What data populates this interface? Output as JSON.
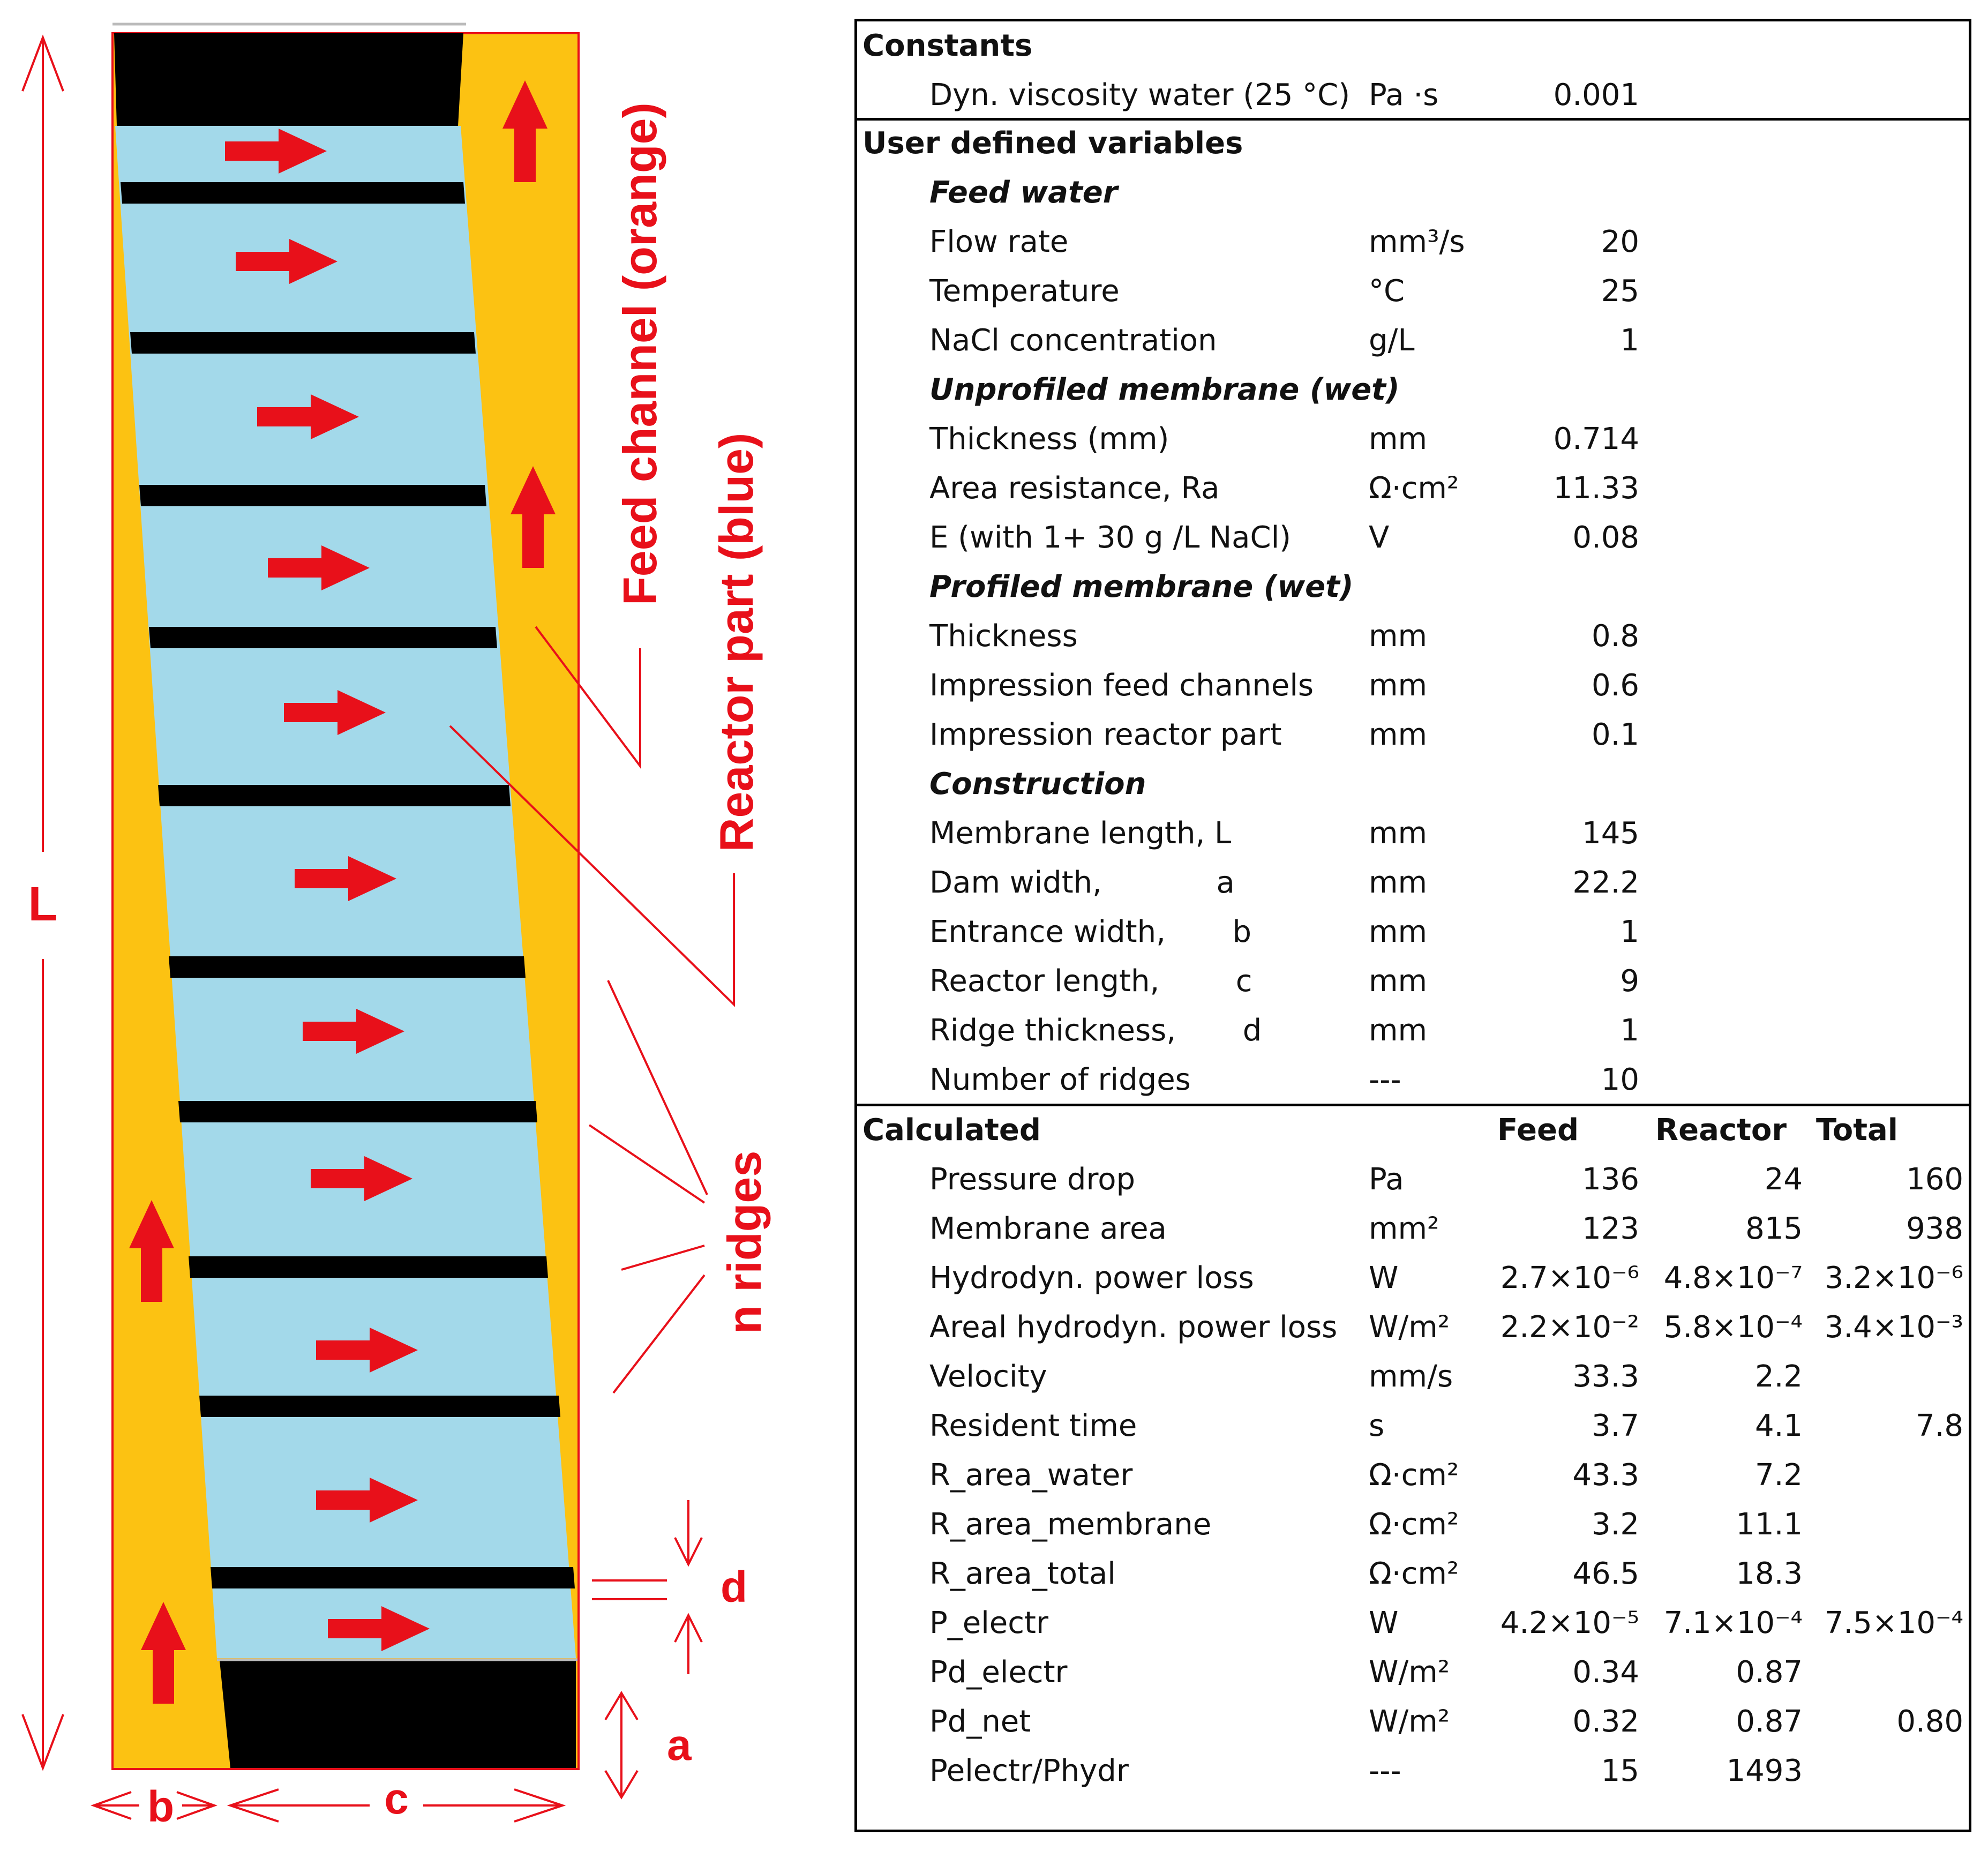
{
  "diagram": {
    "labels": {
      "feed_channel": "Feed channel  (orange)",
      "reactor_part": "Reactor part (blue)",
      "n_ridges": "n ridges",
      "L": "L",
      "a": "a",
      "b": "b",
      "c": "c",
      "d": "d"
    },
    "colors": {
      "feed_channel": "#fcc212",
      "reactor_part": "#a3d9ea",
      "ridge": "#000000",
      "arrow": "#e8101a",
      "annotation": "#e8101a"
    },
    "ridge_count": 10,
    "flow_arrow_icon": "right-arrow-icon",
    "inflow_arrow_icon": "up-arrow-icon"
  },
  "table": {
    "constants": {
      "header": "Constants",
      "rows": [
        {
          "name": "Dyn. viscosity water (25 °C)",
          "unit": "Pa ·s",
          "value": "0.001"
        }
      ]
    },
    "user_defined": {
      "header": "User defined variables",
      "groups": [
        {
          "title": "Feed water",
          "rows": [
            {
              "name": "Flow rate",
              "unit": "mm³/s",
              "value": "20"
            },
            {
              "name": "Temperature",
              "unit": "°C",
              "value": "25"
            },
            {
              "name": "NaCl concentration",
              "unit": "g/L",
              "value": "1"
            }
          ]
        },
        {
          "title": "Unprofiled membrane (wet)",
          "rows": [
            {
              "name": "Thickness (mm)",
              "unit": "mm",
              "value": "0.714"
            },
            {
              "name": "Area resistance, Ra",
              "unit": "Ω·cm²",
              "value": "11.33"
            },
            {
              "name": "E (with 1+ 30 g /L NaCl)",
              "unit": "V",
              "value": "0.08"
            }
          ]
        },
        {
          "title": "Profiled membrane (wet)",
          "rows": [
            {
              "name": "Thickness",
              "unit": "mm",
              "value": "0.8"
            },
            {
              "name": "Impression  feed  channels",
              "unit": "mm",
              "value": "0.6"
            },
            {
              "name": "Impression reactor part",
              "unit": "mm",
              "value": "0.1"
            }
          ]
        },
        {
          "title": "Construction",
          "rows": [
            {
              "name": "Membrane length,  L",
              "unit": "mm",
              "value": "145"
            },
            {
              "name": "Dam width,            a",
              "unit": "mm",
              "value": "22.2"
            },
            {
              "name": "Entrance width,       b",
              "unit": "mm",
              "value": "1"
            },
            {
              "name": "Reactor length,        c",
              "unit": "mm",
              "value": "9"
            },
            {
              "name": "Ridge thickness,       d",
              "unit": "mm",
              "value": "1"
            },
            {
              "name": "Number of ridges",
              "unit": "---",
              "value": "10"
            }
          ]
        }
      ]
    },
    "calculated": {
      "header": "Calculated",
      "columns": [
        "Feed",
        "Reactor",
        "Total"
      ],
      "rows": [
        {
          "name": "Pressure drop",
          "unit": "Pa",
          "feed": "136",
          "reactor": "24",
          "total": "160"
        },
        {
          "name": "Membrane area",
          "unit": "mm²",
          "feed": "123",
          "reactor": "815",
          "total": "938"
        },
        {
          "name": "Hydrodyn. power loss",
          "unit": "W",
          "feed": "2.7×10⁻⁶",
          "reactor": "4.8×10⁻⁷",
          "total": "3.2×10⁻⁶"
        },
        {
          "name": "Areal hydrodyn. power loss",
          "unit": "W/m²",
          "feed": "2.2×10⁻²",
          "reactor": "5.8×10⁻⁴",
          "total": "3.4×10⁻³"
        },
        {
          "name": "Velocity",
          "unit": "mm/s",
          "feed": "33.3",
          "reactor": "2.2",
          "total": ""
        },
        {
          "name": "Resident time",
          "unit": "s",
          "feed": "3.7",
          "reactor": "4.1",
          "total": "7.8"
        },
        {
          "name": "R_area_water",
          "unit": "Ω·cm²",
          "feed": "43.3",
          "reactor": "7.2",
          "total": ""
        },
        {
          "name": "R_area_membrane",
          "unit": "Ω·cm²",
          "feed": "3.2",
          "reactor": "11.1",
          "total": ""
        },
        {
          "name": "R_area_total",
          "unit": "Ω·cm²",
          "feed": "46.5",
          "reactor": "18.3",
          "total": ""
        },
        {
          "name": "P_electr",
          "unit": "W",
          "feed": "4.2×10⁻⁵",
          "reactor": "7.1×10⁻⁴",
          "total": "7.5×10⁻⁴"
        },
        {
          "name": "Pd_electr",
          "unit": "W/m²",
          "feed": "0.34",
          "reactor": "0.87",
          "total": ""
        },
        {
          "name": "Pd_net",
          "unit": "W/m²",
          "feed": "0.32",
          "reactor": "0.87",
          "total": "0.80"
        },
        {
          "name": "Pelectr/Phydr",
          "unit": "---",
          "feed": "15",
          "reactor": "1493",
          "total": ""
        }
      ]
    }
  }
}
